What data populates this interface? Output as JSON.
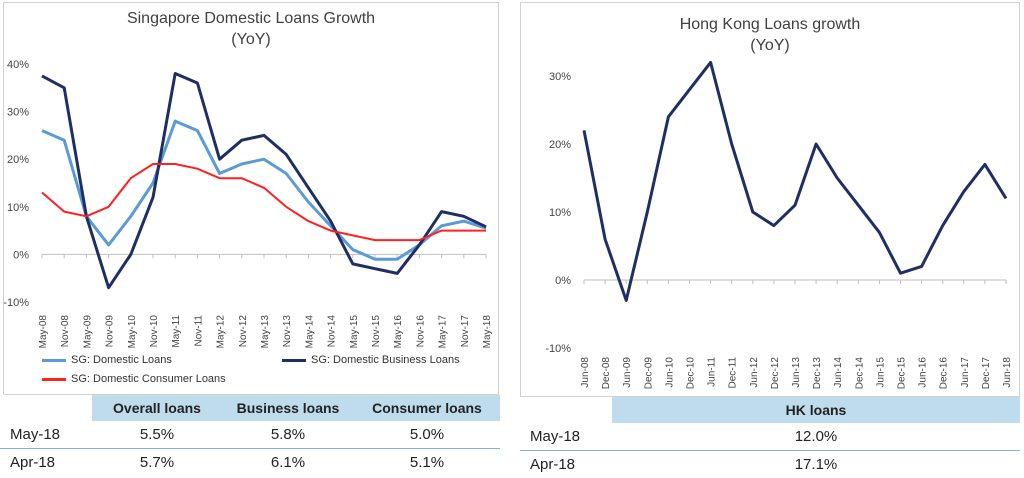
{
  "sg_chart": {
    "title_line1": "Singapore Domestic Loans Growth",
    "title_line2": "(YoY)",
    "y_ticks": [
      "40%",
      "30%",
      "20%",
      "10%",
      "0%",
      "-10%"
    ],
    "x_ticks": [
      "May-08",
      "Nov-08",
      "May-09",
      "Nov-09",
      "May-10",
      "Nov-10",
      "May-11",
      "Nov-11",
      "May-12",
      "Nov-12",
      "May-13",
      "Nov-13",
      "May-14",
      "Nov-14",
      "May-15",
      "Nov-15",
      "May-16",
      "Nov-16",
      "May-17",
      "Nov-17",
      "May-18"
    ],
    "legend": {
      "domestic": "SG: Domestic Loans",
      "business": "SG: Domestic Business Loans",
      "consumer": "SG: Domestic Consumer Loans"
    },
    "colors": {
      "domestic": "#5b9bd5",
      "business": "#1f2f63",
      "consumer": "#ff2020"
    }
  },
  "hk_chart": {
    "title_line1": "Hong Kong Loans growth",
    "title_line2": "(YoY)",
    "y_ticks": [
      "30%",
      "20%",
      "10%",
      "0%",
      "-10%"
    ],
    "x_ticks": [
      "Jun-08",
      "Dec-08",
      "Jun-09",
      "Dec-09",
      "Jun-10",
      "Dec-10",
      "Jun-11",
      "Dec-11",
      "Jun-12",
      "Dec-12",
      "Jun-13",
      "Dec-13",
      "Jun-14",
      "Dec-14",
      "Jun-15",
      "Dec-15",
      "Jun-16",
      "Dec-16",
      "Jun-17",
      "Dec-17",
      "Jun-18"
    ],
    "colors": {
      "hk": "#1f2f63"
    }
  },
  "chart_data": [
    {
      "type": "line",
      "title": "Singapore Domestic Loans Growth (YoY)",
      "x": [
        "May-08",
        "Nov-08",
        "May-09",
        "Nov-09",
        "May-10",
        "Nov-10",
        "May-11",
        "Nov-11",
        "May-12",
        "Nov-12",
        "May-13",
        "Nov-13",
        "May-14",
        "Nov-14",
        "May-15",
        "Nov-15",
        "May-16",
        "Nov-16",
        "May-17",
        "Nov-17",
        "May-18"
      ],
      "ylim": [
        -10,
        40
      ],
      "series": [
        {
          "name": "SG: Domestic Loans",
          "values": [
            26,
            24,
            8,
            2,
            8,
            15,
            28,
            26,
            17,
            19,
            20,
            17,
            11,
            6,
            1,
            -1,
            -1,
            2,
            6,
            7,
            5.5
          ]
        },
        {
          "name": "SG: Domestic Business Loans",
          "values": [
            37.5,
            35,
            8,
            -7,
            0,
            12,
            38,
            36,
            20,
            24,
            25,
            21,
            14,
            7,
            -2,
            -3,
            -4,
            2,
            9,
            8,
            5.8
          ]
        },
        {
          "name": "SG: Domestic Consumer Loans",
          "values": [
            13,
            9,
            8,
            10,
            16,
            19,
            19,
            18,
            16,
            16,
            14,
            10,
            7,
            5,
            4,
            3,
            3,
            3,
            5,
            5,
            5.0
          ]
        }
      ]
    },
    {
      "type": "line",
      "title": "Hong Kong Loans growth (YoY)",
      "x": [
        "Jun-08",
        "Dec-08",
        "Jun-09",
        "Dec-09",
        "Jun-10",
        "Dec-10",
        "Jun-11",
        "Dec-11",
        "Jun-12",
        "Dec-12",
        "Jun-13",
        "Dec-13",
        "Jun-14",
        "Dec-14",
        "Jun-15",
        "Dec-15",
        "Jun-16",
        "Dec-16",
        "Jun-17",
        "Dec-17",
        "Jun-18"
      ],
      "ylim": [
        -10,
        30
      ],
      "series": [
        {
          "name": "HK loans",
          "values": [
            22,
            6,
            -3,
            10,
            24,
            28,
            32,
            20,
            10,
            8,
            11,
            20,
            15,
            11,
            7,
            1,
            2,
            8,
            13,
            17,
            12
          ]
        }
      ]
    }
  ],
  "sg_table": {
    "headers": [
      "Overall loans",
      "Business loans",
      "Consumer loans"
    ],
    "rows": [
      {
        "label": "May-18",
        "values": [
          "5.5%",
          "5.8%",
          "5.0%"
        ]
      },
      {
        "label": "Apr-18",
        "values": [
          "5.7%",
          "6.1%",
          "5.1%"
        ]
      }
    ]
  },
  "hk_table": {
    "header": "HK loans",
    "rows": [
      {
        "label": "May-18",
        "value": "12.0%"
      },
      {
        "label": "Apr-18",
        "value": "17.1%"
      }
    ]
  }
}
